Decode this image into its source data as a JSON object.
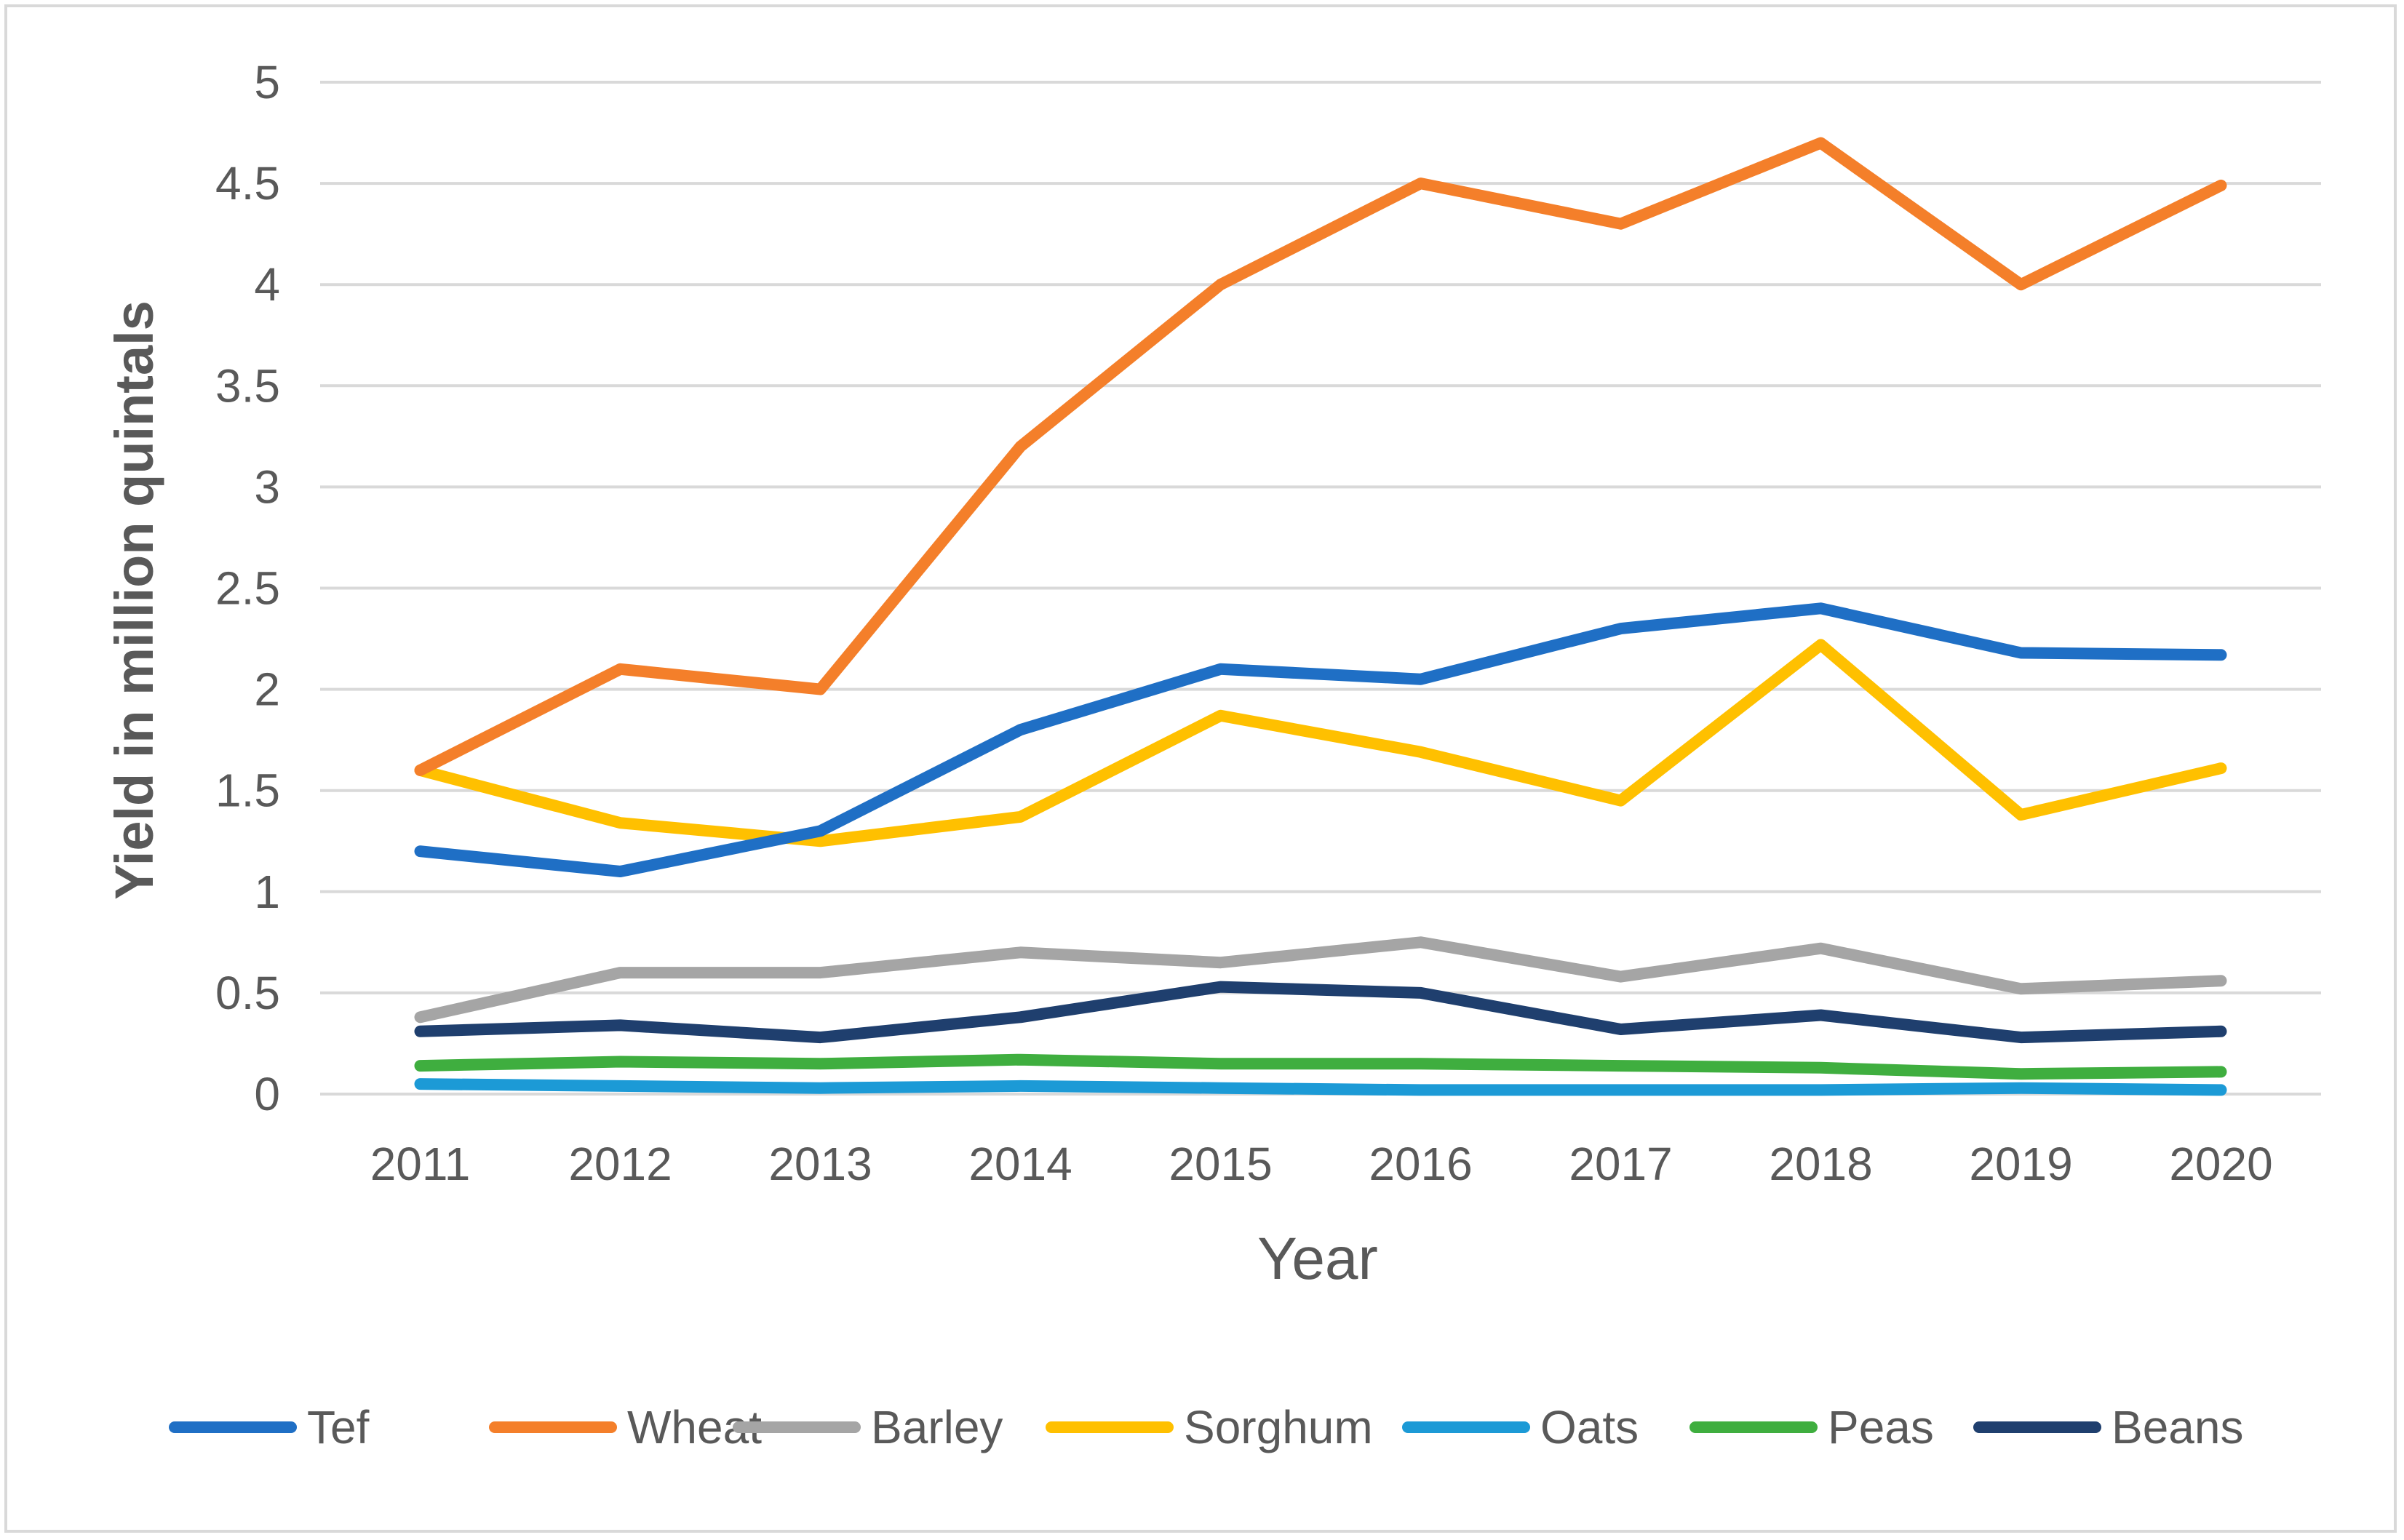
{
  "chart_data": {
    "type": "line",
    "title": "",
    "xlabel": "Year",
    "ylabel": "Yield in million quintals",
    "categories": [
      "2011",
      "2012",
      "2013",
      "2014",
      "2015",
      "2016",
      "2017",
      "2018",
      "2019",
      "2020"
    ],
    "yticks": [
      "0",
      "0.5",
      "1",
      "1.5",
      "2",
      "2.5",
      "3",
      "3.5",
      "4",
      "4.5",
      "5"
    ],
    "ylim": [
      0,
      5
    ],
    "grid": true,
    "legend_position": "bottom",
    "series": [
      {
        "name": "Tef",
        "color": "#1F6FC5",
        "values": [
          1.2,
          1.1,
          1.3,
          1.8,
          2.1,
          2.05,
          2.3,
          2.4,
          2.18,
          2.17
        ]
      },
      {
        "name": "Wheat",
        "color": "#F47F2A",
        "values": [
          1.6,
          2.1,
          2.0,
          3.2,
          4.0,
          4.5,
          4.3,
          4.7,
          4.0,
          4.49
        ]
      },
      {
        "name": "Barley",
        "color": "#A5A5A5",
        "values": [
          0.38,
          0.6,
          0.6,
          0.7,
          0.65,
          0.75,
          0.58,
          0.72,
          0.52,
          0.56
        ]
      },
      {
        "name": "Sorghum",
        "color": "#FFC000",
        "values": [
          1.6,
          1.34,
          1.25,
          1.37,
          1.87,
          1.69,
          1.45,
          2.22,
          1.38,
          1.61
        ]
      },
      {
        "name": "Oats",
        "color": "#1C9AD6",
        "values": [
          0.05,
          0.04,
          0.03,
          0.04,
          0.03,
          0.02,
          0.02,
          0.02,
          0.03,
          0.02
        ]
      },
      {
        "name": "Peas",
        "color": "#3FAE3F",
        "values": [
          0.14,
          0.16,
          0.15,
          0.17,
          0.15,
          0.15,
          0.14,
          0.13,
          0.1,
          0.11
        ]
      },
      {
        "name": "Beans",
        "color": "#1F3F6E",
        "values": [
          0.31,
          0.34,
          0.28,
          0.38,
          0.53,
          0.5,
          0.32,
          0.39,
          0.28,
          0.31
        ]
      }
    ]
  }
}
